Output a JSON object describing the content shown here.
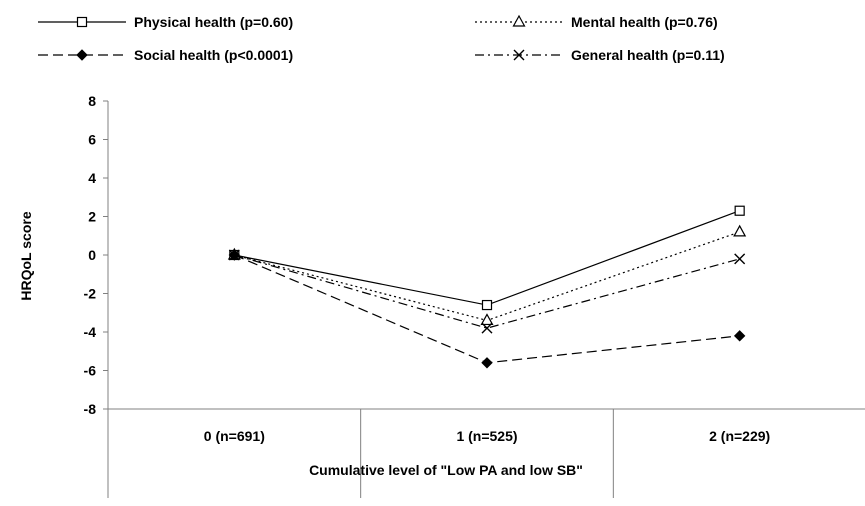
{
  "chart_data": {
    "type": "line",
    "xlabel": "Cumulative level of \"Low PA and low SB\"",
    "ylabel": "HRQoL score",
    "categories": [
      "0 (n=691)",
      "1 (n=525)",
      "2 (n=229)"
    ],
    "ylim": [
      -8,
      8
    ],
    "yticks": [
      "8",
      "6",
      "4",
      "2",
      "0",
      "-2",
      "-4",
      "-6",
      "-8"
    ],
    "grid": false,
    "legend_position": "top",
    "series": [
      {
        "name": "Physical health (p=0.60)",
        "values": [
          0,
          -2.6,
          2.3
        ],
        "marker": "open-square",
        "dash": "solid"
      },
      {
        "name": "Mental health (p=0.76)",
        "values": [
          0,
          -3.4,
          1.2
        ],
        "marker": "open-triangle",
        "dash": "dotted"
      },
      {
        "name": "Social health (p<0.0001)",
        "values": [
          0,
          -5.6,
          -4.2
        ],
        "marker": "filled-diamond",
        "dash": "dashed"
      },
      {
        "name": "General health (p=0.11)",
        "values": [
          0,
          -3.8,
          -0.2
        ],
        "marker": "x",
        "dash": "dash-dot"
      }
    ]
  },
  "colors": {
    "line": "#000000",
    "axis": "#808080",
    "background": "#ffffff"
  }
}
